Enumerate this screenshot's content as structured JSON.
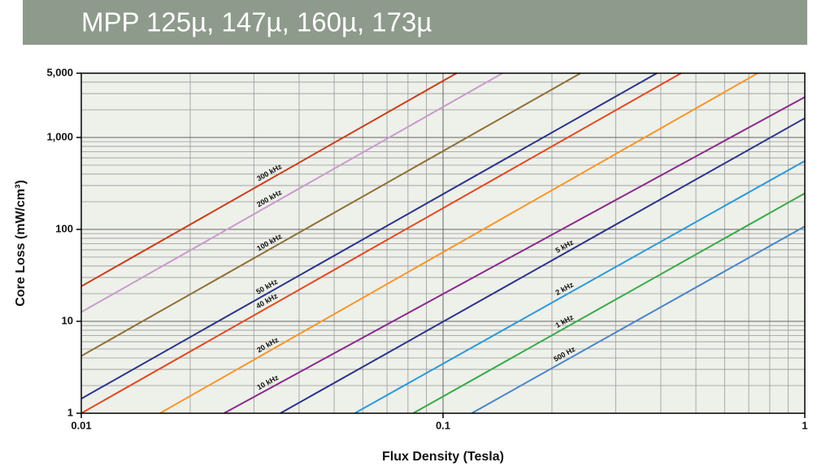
{
  "chart_data": {
    "type": "line",
    "title": "MPP 125µ, 147µ, 160µ, 173µ",
    "x_label": "Flux Density (Tesla)",
    "y_label": "Core Loss (mW/cm³)",
    "x_log": true,
    "y_log": true,
    "grid": true,
    "xlim": [
      0.01,
      1
    ],
    "ylim": [
      1,
      5000
    ],
    "xticks": [
      0.01,
      0.1,
      1
    ],
    "yticks": [
      1,
      10,
      100,
      {
        "value": 1000,
        "label": "1,000"
      },
      {
        "value": 5000,
        "label": "5,000"
      }
    ],
    "series": [
      {
        "name": "300 kHz",
        "color": "#c8401c",
        "x": [
          0.01,
          0.109
        ],
        "values": [
          24,
          5000
        ]
      },
      {
        "name": "200 kHz",
        "color": "#c89ccc",
        "x": [
          0.01,
          0.146
        ],
        "values": [
          12.6,
          5000
        ]
      },
      {
        "name": "100 kHz",
        "color": "#8f7036",
        "x": [
          0.01,
          0.24
        ],
        "values": [
          4.2,
          5000
        ]
      },
      {
        "name": "50 kHz",
        "color": "#2c3488",
        "x": [
          0.01,
          0.39
        ],
        "values": [
          1.44,
          5000
        ]
      },
      {
        "name": "40 kHz",
        "color": "#e04a22",
        "x": [
          0.01,
          0.455
        ],
        "values": [
          1,
          5000
        ]
      },
      {
        "name": "20 kHz",
        "color": "#f7962a",
        "x": [
          0.0165,
          0.741
        ],
        "values": [
          1,
          5000
        ]
      },
      {
        "name": "10 kHz",
        "color": "#8a2a8a",
        "x": [
          0.0248,
          1
        ],
        "values": [
          1,
          2750
        ]
      },
      {
        "name": "5 kHz",
        "color": "#2c3488",
        "x": [
          0.0355,
          1
        ],
        "values": [
          1,
          1620
        ]
      },
      {
        "name": "2 kHz",
        "color": "#2b9ad6",
        "x": [
          0.057,
          1
        ],
        "values": [
          1,
          555
        ]
      },
      {
        "name": "1 kHz",
        "color": "#3aaa48",
        "x": [
          0.0827,
          1
        ],
        "values": [
          1,
          247
        ]
      },
      {
        "name": "500 Hz",
        "color": "#4a86c6",
        "x": [
          0.12,
          1
        ],
        "values": [
          1,
          108
        ]
      }
    ]
  }
}
